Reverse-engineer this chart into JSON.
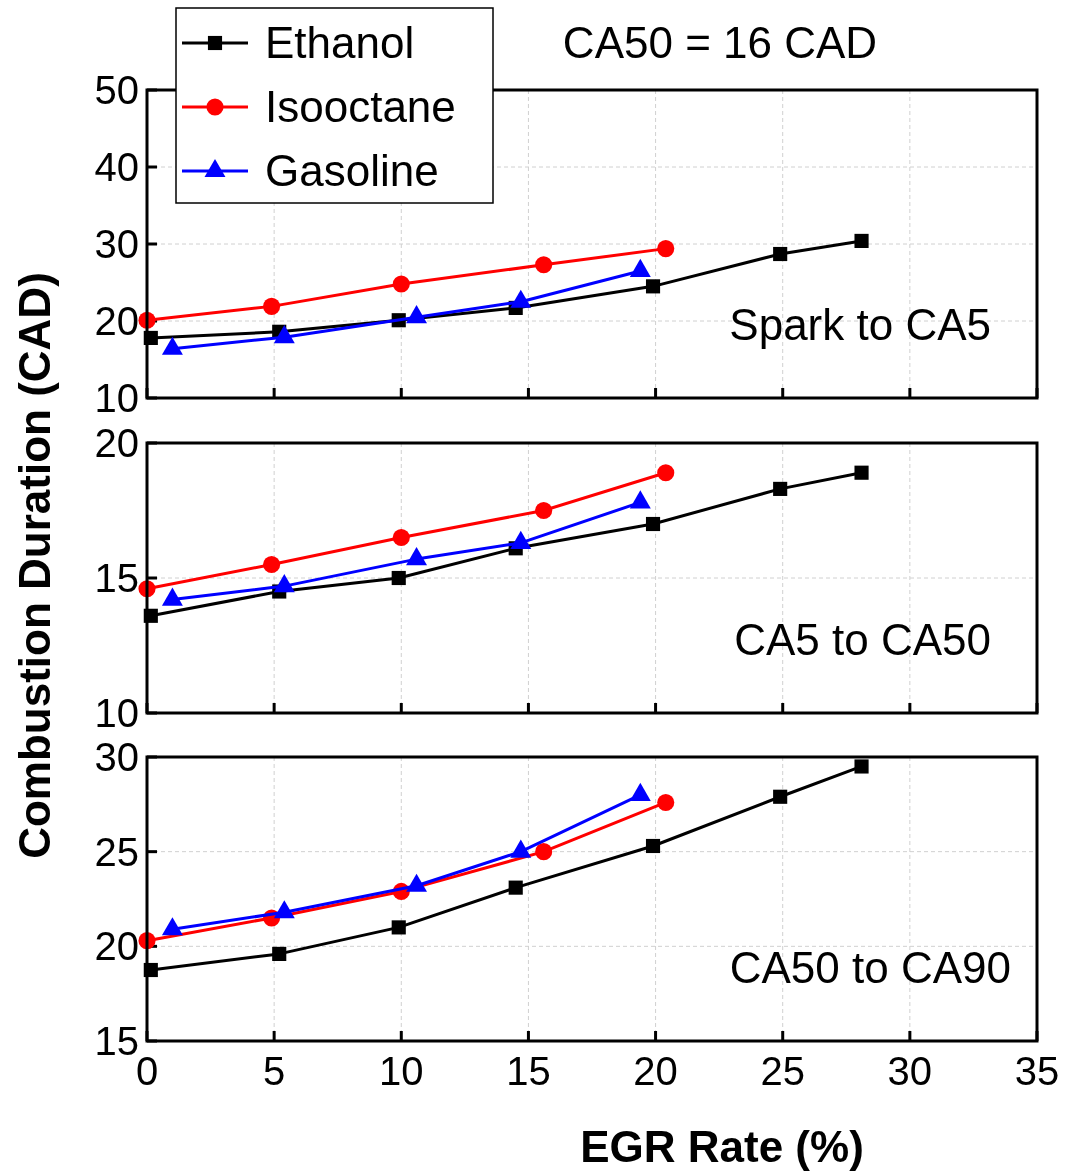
{
  "chart_data": [
    {
      "type": "line",
      "title": "CA50 = 16 CAD",
      "annotations": [
        "Spark to CA5"
      ],
      "xlim": [
        0,
        35
      ],
      "xticks": [
        0,
        5,
        10,
        15,
        20,
        25,
        30,
        35
      ],
      "ylim": [
        10,
        50
      ],
      "yticks": [
        10,
        20,
        30,
        40,
        50
      ],
      "grid": true,
      "legend": "top left",
      "tick_labels": "y",
      "series": [
        {
          "name": "Ethanol",
          "color": "#000000",
          "marker": "square",
          "x": [
            0.15,
            5.2,
            9.9,
            14.5,
            19.9,
            24.9,
            28.1
          ],
          "values": [
            17.8,
            18.6,
            20.1,
            21.7,
            24.5,
            28.7,
            30.4
          ]
        },
        {
          "name": "Isooctane",
          "color": "#ff0000",
          "marker": "circle",
          "x": [
            0,
            4.9,
            10,
            15.6,
            20.4
          ],
          "values": [
            20.1,
            21.9,
            24.8,
            27.3,
            29.4
          ]
        },
        {
          "name": "Gasoline",
          "color": "#0000ff",
          "marker": "triangle",
          "x": [
            1.0,
            5.4,
            10.6,
            14.7,
            19.4
          ],
          "values": [
            16.4,
            17.9,
            20.5,
            22.5,
            26.5
          ]
        }
      ]
    },
    {
      "type": "line",
      "ylabel": "Combustion Duration (CAD)",
      "annotations": [
        "CA5 to CA50"
      ],
      "xlim": [
        0,
        35
      ],
      "xticks": [
        0,
        5,
        10,
        15,
        20,
        25,
        30,
        35
      ],
      "ylim": [
        10,
        20
      ],
      "yticks": [
        10,
        15,
        20
      ],
      "grid": true,
      "tick_labels": "y",
      "series": [
        {
          "color": "#000000",
          "marker": "square",
          "x": [
            0.15,
            5.2,
            9.9,
            14.5,
            19.9,
            24.9,
            28.1
          ],
          "values": [
            13.6,
            14.5,
            15.0,
            16.1,
            17.0,
            18.3,
            18.9
          ]
        },
        {
          "color": "#ff0000",
          "marker": "circle",
          "x": [
            0,
            4.9,
            10,
            15.6,
            20.4
          ],
          "values": [
            14.6,
            15.5,
            16.5,
            17.5,
            18.9
          ]
        },
        {
          "color": "#0000ff",
          "marker": "triangle",
          "x": [
            1.0,
            5.4,
            10.6,
            14.7,
            19.4
          ],
          "values": [
            14.2,
            14.7,
            15.7,
            16.3,
            17.8
          ]
        }
      ]
    },
    {
      "type": "line",
      "xlabel": "EGR Rate (%)",
      "annotations": [
        "CA50 to CA90"
      ],
      "xlim": [
        0,
        35
      ],
      "xticks": [
        0,
        5,
        10,
        15,
        20,
        25,
        30,
        35
      ],
      "ylim": [
        15,
        30
      ],
      "yticks": [
        15,
        20,
        25,
        30
      ],
      "grid": true,
      "series": [
        {
          "color": "#000000",
          "marker": "square",
          "x": [
            0.15,
            5.2,
            9.9,
            14.5,
            19.9,
            24.9,
            28.1
          ],
          "values": [
            18.75,
            19.6,
            21.0,
            23.1,
            25.3,
            27.9,
            29.5
          ]
        },
        {
          "color": "#ff0000",
          "marker": "circle",
          "x": [
            0,
            4.9,
            10,
            15.6,
            20.4
          ],
          "values": [
            20.3,
            21.5,
            22.9,
            25.0,
            27.6
          ]
        },
        {
          "color": "#0000ff",
          "marker": "triangle",
          "x": [
            1.0,
            5.4,
            10.6,
            14.7,
            19.4
          ],
          "values": [
            20.9,
            21.8,
            23.2,
            25.0,
            28.0
          ]
        }
      ]
    }
  ]
}
